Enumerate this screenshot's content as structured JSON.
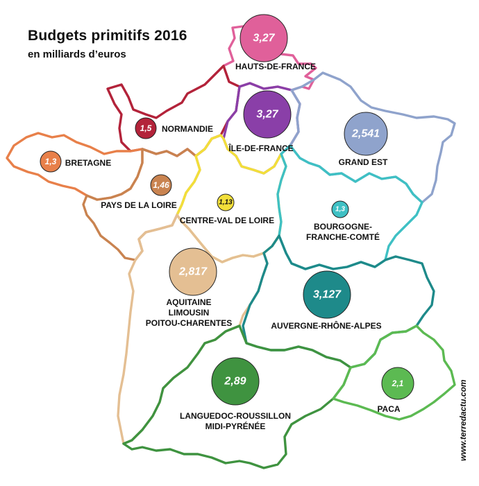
{
  "title": "Budgets primitifs 2016",
  "subtitle": "en milliards d’euros",
  "credit": "www.terredactu.com",
  "regions": [
    {
      "id": "hauts-de-france",
      "name": "HAUTS-DE-FRANCE",
      "value": "3,27",
      "color": "#e0609a"
    },
    {
      "id": "normandie",
      "name": "NORMANDIE",
      "value": "1,5",
      "color": "#b3233a"
    },
    {
      "id": "ile-de-france",
      "name": "ÎLE-DE-FRANCE",
      "value": "3,27",
      "color": "#8a3fa8"
    },
    {
      "id": "grand-est",
      "name": "GRAND EST",
      "value": "2,541",
      "color": "#8fa3cc"
    },
    {
      "id": "bretagne",
      "name": "BRETAGNE",
      "value": "1,3",
      "color": "#e8804a"
    },
    {
      "id": "pays-de-la-loire",
      "name": "PAYS DE LA LOIRE",
      "value": "1,46",
      "color": "#c98350"
    },
    {
      "id": "centre-val-de-loire",
      "name": "CENTRE-VAL DE LOIRE",
      "value": "1,13",
      "color": "#f2df3a"
    },
    {
      "id": "bourgogne-franche-comte",
      "name": "BOURGOGNE-\nFRANCHE-COMTÉ",
      "value": "1,3",
      "color": "#3fc0c4"
    },
    {
      "id": "aquitaine",
      "name": "AQUITAINE\nLIMOUSIN\nPOITOU-CHARENTES",
      "value": "2,817",
      "color": "#e4bf93"
    },
    {
      "id": "auvergne-rhone-alpes",
      "name": "AUVERGNE-RHÔNE-ALPES",
      "value": "3,127",
      "color": "#1e8a8a"
    },
    {
      "id": "languedoc",
      "name": "LANGUEDOC-ROUSSILLON\nMIDI-PYRÉNÉE",
      "value": "2,89",
      "color": "#3f9340"
    },
    {
      "id": "paca",
      "name": "PACA",
      "value": "2,1",
      "color": "#5cba52"
    }
  ]
}
